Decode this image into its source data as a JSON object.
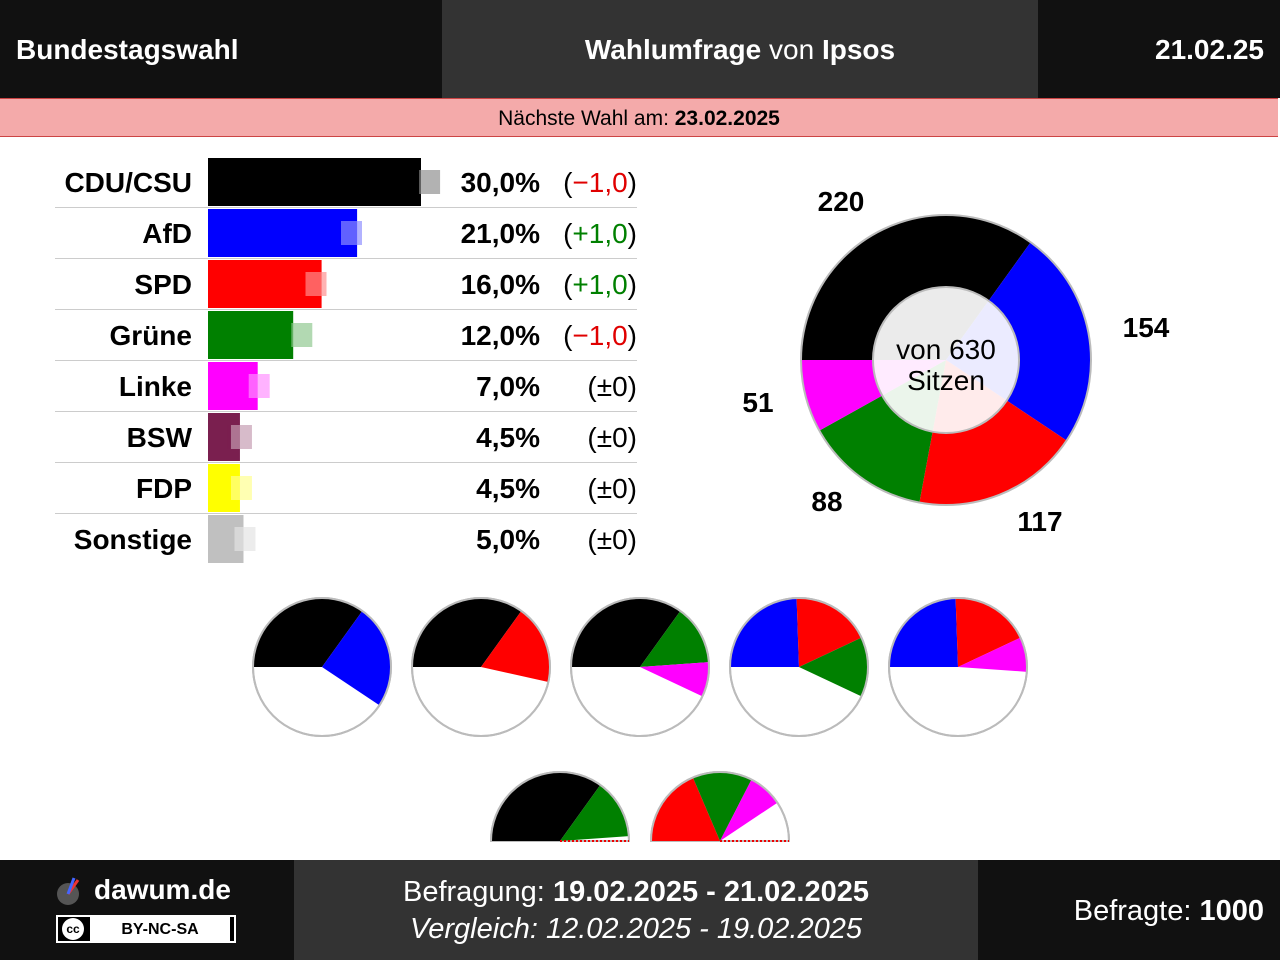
{
  "header": {
    "left_title": "Bundestagswahl",
    "center_bold1": "Wahlumfrage",
    "center_normal": " von ",
    "center_bold2": "Ipsos",
    "date": "21.02.25"
  },
  "banner": {
    "label": "Nächste Wahl am: ",
    "date": "23.02.2025"
  },
  "chart_data": [
    {
      "type": "bar",
      "categories": [
        "CDU/CSU",
        "AfD",
        "SPD",
        "Grüne",
        "Linke",
        "BSW",
        "FDP",
        "Sonstige"
      ],
      "series": [
        {
          "values": [
            30.0,
            21.0,
            16.0,
            12.0,
            7.0,
            4.5,
            4.5,
            5.0
          ]
        },
        {
          "values": [
            31.0,
            20.0,
            15.0,
            13.0,
            7.0,
            4.5,
            4.5,
            5.0
          ]
        }
      ],
      "value_labels": [
        "30,0%",
        "21,0%",
        "16,0%",
        "12,0%",
        "7,0%",
        "4,5%",
        "4,5%",
        "5,0%"
      ],
      "change_labels": [
        "(−1,0)",
        "(+1,0)",
        "(+1,0)",
        "(−1,0)",
        "(±0)",
        "(±0)",
        "(±0)",
        "(±0)"
      ],
      "change_colors": [
        "#e00000",
        "#008000",
        "#008000",
        "#e00000",
        "#000000",
        "#000000",
        "#000000",
        "#000000"
      ],
      "colors": [
        "#000000",
        "#0000ff",
        "#ff0000",
        "#008000",
        "#ff00ff",
        "#7a1f4f",
        "#ffff00",
        "#c0c0c0"
      ]
    },
    {
      "type": "pie",
      "labels": [
        "CDU/CSU",
        "AfD",
        "SPD",
        "Grüne",
        "Linke"
      ],
      "values": [
        220,
        154,
        117,
        88,
        51
      ],
      "value_labels": [
        "220",
        "154",
        "117",
        "88",
        "51"
      ],
      "colors": [
        "#000000",
        "#0000ff",
        "#ff0000",
        "#008000",
        "#ff00ff"
      ],
      "center_text": [
        "von 630",
        "Sitzen"
      ]
    },
    {
      "type": "pie",
      "coalitions": [
        {
          "values": [
            220,
            154
          ],
          "colors": [
            "#000000",
            "#0000ff"
          ]
        },
        {
          "values": [
            220,
            117
          ],
          "colors": [
            "#000000",
            "#ff0000"
          ]
        },
        {
          "values": [
            220,
            88,
            51
          ],
          "colors": [
            "#000000",
            "#008000",
            "#ff00ff"
          ]
        },
        {
          "values": [
            154,
            117,
            88
          ],
          "colors": [
            "#0000ff",
            "#ff0000",
            "#008000"
          ]
        },
        {
          "values": [
            154,
            117,
            51
          ],
          "colors": [
            "#0000ff",
            "#ff0000",
            "#ff00ff"
          ]
        },
        {
          "values": [
            220,
            88
          ],
          "colors": [
            "#000000",
            "#008000"
          ]
        },
        {
          "values": [
            117,
            88,
            51
          ],
          "colors": [
            "#ff0000",
            "#008000",
            "#ff00ff"
          ]
        }
      ],
      "total": 630
    }
  ],
  "footer": {
    "brand": "dawum.de",
    "license_cc": "cc",
    "license_text": "BY-NC-SA",
    "survey_label": "Befragung: ",
    "survey_period": "19.02.2025 - 21.02.2025",
    "compare_text": "Vergleich: 12.02.2025 - 19.02.2025",
    "respondents_label": "Befragte: ",
    "respondents_value": "1000"
  }
}
